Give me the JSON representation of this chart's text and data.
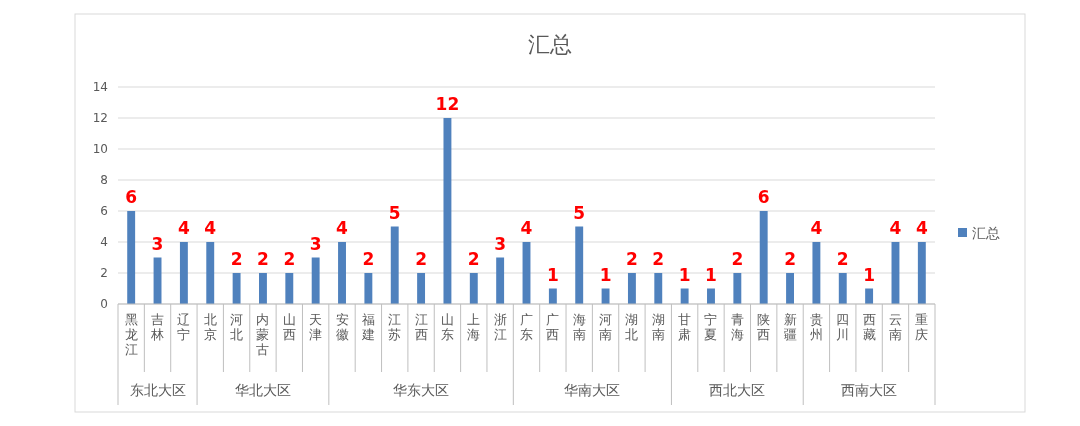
{
  "chart_data": {
    "type": "bar",
    "title": "汇总",
    "categories": [
      "黑龙江",
      "吉林",
      "辽宁",
      "北京",
      "河北",
      "内蒙古",
      "山西",
      "天津",
      "安徽",
      "福建",
      "江苏",
      "江西",
      "山东",
      "上海",
      "浙江",
      "广东",
      "广西",
      "海南",
      "河南",
      "湖北",
      "湖南",
      "甘肃",
      "宁夏",
      "青海",
      "陕西",
      "新疆",
      "贵州",
      "四川",
      "西藏",
      "云南",
      "重庆"
    ],
    "series": [
      {
        "name": "汇总",
        "color": "#4f81bd",
        "values": [
          6,
          3,
          4,
          4,
          2,
          2,
          2,
          3,
          4,
          2,
          5,
          2,
          12,
          2,
          3,
          4,
          1,
          5,
          1,
          2,
          2,
          1,
          1,
          2,
          6,
          2,
          4,
          2,
          1,
          4,
          4
        ]
      }
    ],
    "ylim": [
      0,
      14
    ],
    "yticks": [
      0,
      2,
      4,
      6,
      8,
      10,
      12,
      14
    ],
    "grid": "y",
    "legend": "right",
    "data_labels": true,
    "annotations": [
      "东北大区",
      "华北大区",
      "华东大区",
      "华南大区",
      "西北大区",
      "西南大区"
    ]
  }
}
